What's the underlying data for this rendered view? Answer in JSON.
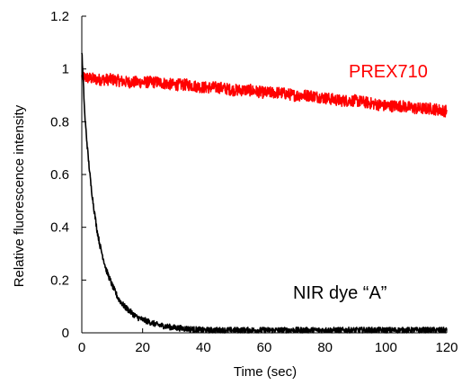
{
  "chart_data": {
    "type": "line",
    "title": "",
    "xlabel": "Time (sec)",
    "ylabel": "Relative fluorescence intensity",
    "xlim": [
      0,
      120
    ],
    "ylim": [
      0,
      1.2
    ],
    "x_ticks": [
      0,
      20,
      40,
      60,
      80,
      100,
      120
    ],
    "y_ticks": [
      0,
      0.2,
      0.4,
      0.6,
      0.8,
      1,
      1.2
    ],
    "x_tick_labels": [
      "0",
      "20",
      "40",
      "60",
      "80",
      "100",
      "120"
    ],
    "y_tick_labels": [
      "0",
      "0.2",
      "0.4",
      "0.6",
      "0.8",
      "1",
      "1.2"
    ],
    "grid": false,
    "legend": "none",
    "series": [
      {
        "name": "PREX710",
        "color": "#ff0000",
        "x": [
          0,
          5,
          10,
          15,
          20,
          25,
          30,
          35,
          40,
          45,
          50,
          55,
          60,
          65,
          70,
          75,
          80,
          85,
          90,
          95,
          100,
          105,
          110,
          115,
          120
        ],
        "values": [
          0.97,
          0.96,
          0.96,
          0.95,
          0.95,
          0.95,
          0.94,
          0.94,
          0.93,
          0.93,
          0.92,
          0.92,
          0.91,
          0.91,
          0.9,
          0.9,
          0.89,
          0.88,
          0.88,
          0.87,
          0.86,
          0.86,
          0.85,
          0.85,
          0.84
        ]
      },
      {
        "name": "NIR dye “A”",
        "color": "#000000",
        "x": [
          0,
          1,
          2,
          3,
          4,
          5,
          6,
          8,
          10,
          12,
          14,
          16,
          18,
          20,
          25,
          30,
          35,
          40,
          50,
          60,
          70,
          80,
          90,
          100,
          110,
          120
        ],
        "values": [
          1.07,
          0.82,
          0.68,
          0.56,
          0.47,
          0.39,
          0.33,
          0.24,
          0.18,
          0.13,
          0.1,
          0.08,
          0.06,
          0.05,
          0.03,
          0.02,
          0.015,
          0.01,
          0.01,
          0.01,
          0.01,
          0.01,
          0.01,
          0.01,
          0.01,
          0.01
        ]
      }
    ]
  }
}
